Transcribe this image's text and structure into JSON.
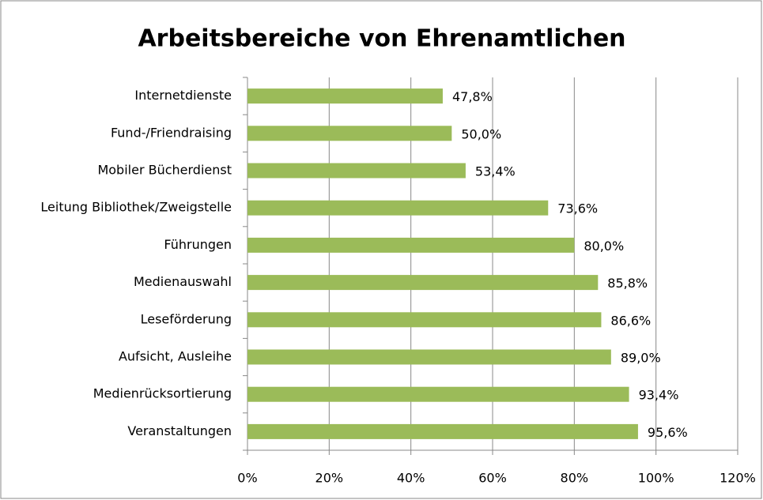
{
  "chart_data": {
    "type": "bar",
    "orientation": "horizontal",
    "title": "Arbeitsbereiche von Ehrenamtlichen",
    "categories": [
      "Internetdienste",
      "Fund-/Friendraising",
      "Mobiler Bücherdienst",
      "Leitung Bibliothek/Zweigstelle",
      "Führungen",
      "Medienauswahl",
      "Leseförderung",
      "Aufsicht, Ausleihe",
      "Medienrücksortierung",
      "Veranstaltungen"
    ],
    "values": [
      47.8,
      50.0,
      53.4,
      73.6,
      80.0,
      85.8,
      86.6,
      89.0,
      93.4,
      95.6
    ],
    "value_labels": [
      "47,8%",
      "50,0%",
      "53,4%",
      "73,6%",
      "80,0%",
      "85,8%",
      "86,6%",
      "89,0%",
      "93,4%",
      "95,6%"
    ],
    "color": "#9bbb59",
    "xlim": [
      0,
      120
    ],
    "xticks": [
      {
        "value": 0,
        "label": "0%"
      },
      {
        "value": 20,
        "label": "20%"
      },
      {
        "value": 40,
        "label": "40%"
      },
      {
        "value": 60,
        "label": "60%"
      },
      {
        "value": 80,
        "label": "80%"
      },
      {
        "value": 100,
        "label": "100%"
      },
      {
        "value": 120,
        "label": "120%"
      }
    ],
    "grid": true
  }
}
